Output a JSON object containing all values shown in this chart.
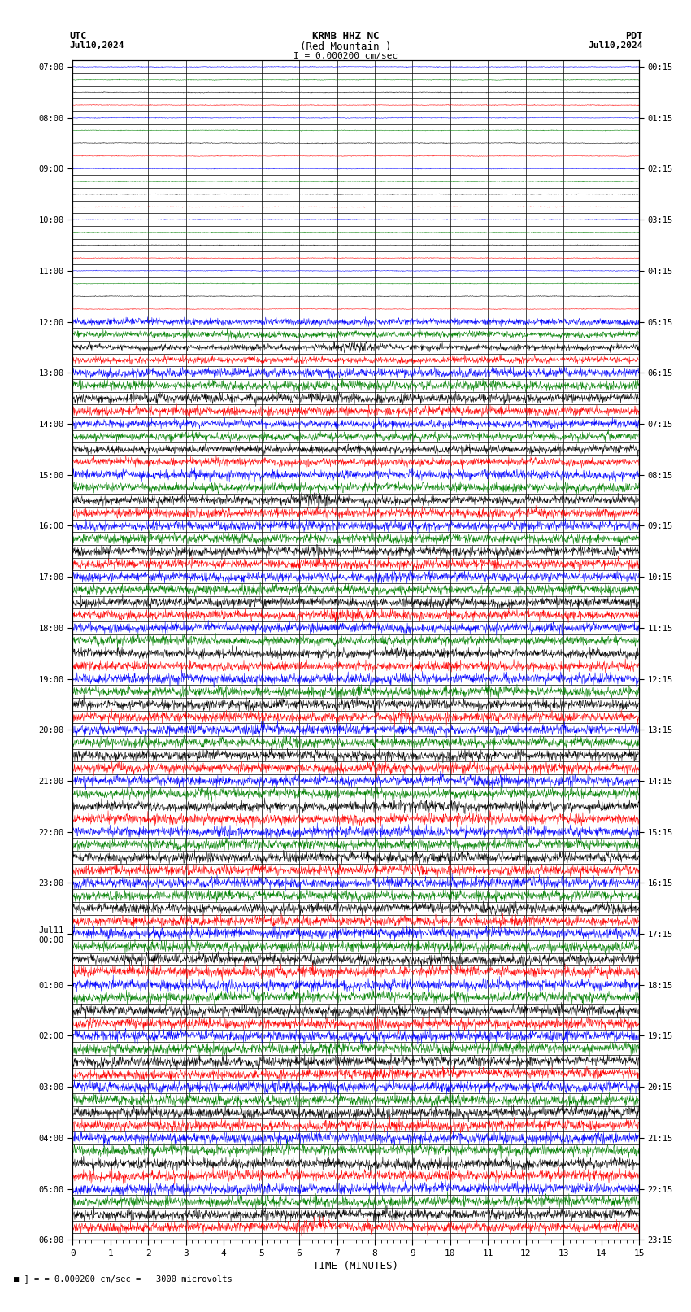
{
  "title_line1": "KRMB HHZ NC",
  "title_line2": "(Red Mountain )",
  "title_scale": "I = 0.000200 cm/sec",
  "label_left_top": "UTC",
  "label_left_date": "Jul10,2024",
  "label_right_top": "PDT",
  "label_right_date": "Jul10,2024",
  "xlabel": "TIME (MINUTES)",
  "footer": "= 0.000200 cm/sec =   3000 microvolts",
  "utc_times": [
    "07:00",
    "",
    "",
    "",
    "08:00",
    "",
    "",
    "",
    "09:00",
    "",
    "",
    "",
    "10:00",
    "",
    "",
    "",
    "11:00",
    "",
    "",
    "",
    "12:00",
    "",
    "",
    "",
    "13:00",
    "",
    "",
    "",
    "14:00",
    "",
    "",
    "",
    "15:00",
    "",
    "",
    "",
    "16:00",
    "",
    "",
    "",
    "17:00",
    "",
    "",
    "",
    "18:00",
    "",
    "",
    "",
    "19:00",
    "",
    "",
    "",
    "20:00",
    "",
    "",
    "",
    "21:00",
    "",
    "",
    "",
    "22:00",
    "",
    "",
    "",
    "23:00",
    "",
    "",
    "",
    "Jul11\n00:00",
    "",
    "",
    "",
    "01:00",
    "",
    "",
    "",
    "02:00",
    "",
    "",
    "",
    "03:00",
    "",
    "",
    "",
    "04:00",
    "",
    "",
    "",
    "05:00",
    "",
    "",
    "",
    "06:00",
    "",
    "",
    ""
  ],
  "pdt_times": [
    "00:15",
    "",
    "",
    "",
    "01:15",
    "",
    "",
    "",
    "02:15",
    "",
    "",
    "",
    "03:15",
    "",
    "",
    "",
    "04:15",
    "",
    "",
    "",
    "05:15",
    "",
    "",
    "",
    "06:15",
    "",
    "",
    "",
    "07:15",
    "",
    "",
    "",
    "08:15",
    "",
    "",
    "",
    "09:15",
    "",
    "",
    "",
    "10:15",
    "",
    "",
    "",
    "11:15",
    "",
    "",
    "",
    "12:15",
    "",
    "",
    "",
    "13:15",
    "",
    "",
    "",
    "14:15",
    "",
    "",
    "",
    "15:15",
    "",
    "",
    "",
    "16:15",
    "",
    "",
    "",
    "17:15",
    "",
    "",
    "",
    "18:15",
    "",
    "",
    "",
    "19:15",
    "",
    "",
    "",
    "20:15",
    "",
    "",
    "",
    "21:15",
    "",
    "",
    "",
    "22:15",
    "",
    "",
    "",
    "23:15",
    "",
    "",
    ""
  ],
  "colors": [
    "blue",
    "green",
    "black",
    "red"
  ],
  "bg_color": "white",
  "grid_color": "#000000",
  "num_rows": 92,
  "noise_seed": 42
}
